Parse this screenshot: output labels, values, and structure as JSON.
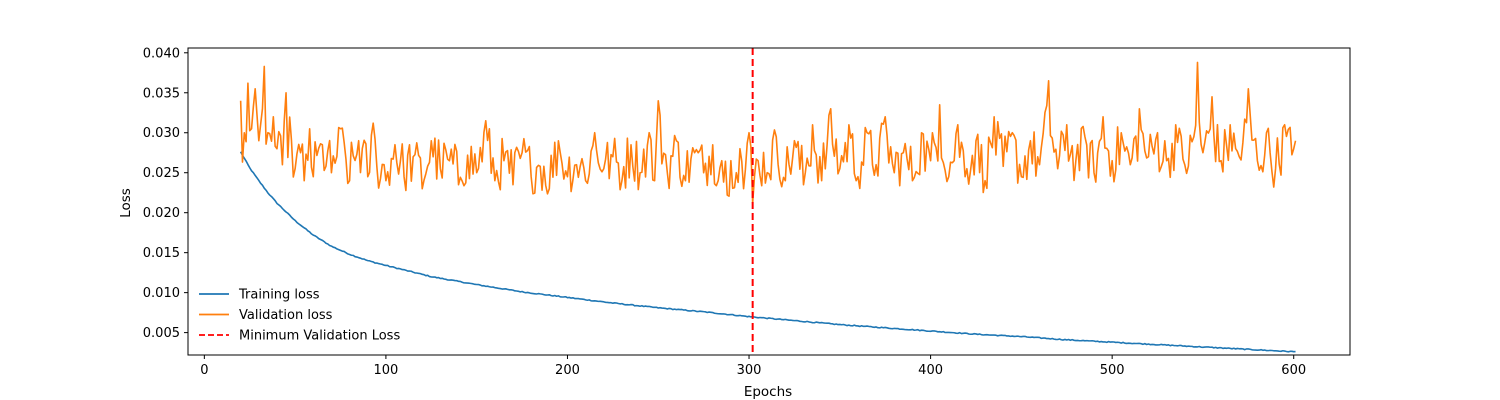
{
  "chart_data": {
    "type": "line",
    "title": "",
    "xlabel": "Epochs",
    "ylabel": "Loss",
    "xlim": [
      -9,
      631
    ],
    "ylim": [
      0.0022,
      0.0406
    ],
    "xticks": [
      0,
      100,
      200,
      300,
      400,
      500,
      600
    ],
    "xtick_labels": [
      "0",
      "100",
      "200",
      "300",
      "400",
      "500",
      "600"
    ],
    "yticks": [
      0.005,
      0.01,
      0.015,
      0.02,
      0.025,
      0.03,
      0.035,
      0.04
    ],
    "ytick_labels": [
      "0.005",
      "0.010",
      "0.015",
      "0.020",
      "0.025",
      "0.030",
      "0.035",
      "0.040"
    ],
    "grid": false,
    "legend_position": "lower-left",
    "x_range": [
      20,
      601
    ],
    "series": [
      {
        "name": "Training loss",
        "color": "#1f77b4",
        "style": "solid",
        "x": [
          20,
          25,
          30,
          35,
          40,
          50,
          60,
          70,
          80,
          90,
          100,
          125,
          150,
          175,
          200,
          225,
          250,
          275,
          300,
          325,
          350,
          375,
          400,
          425,
          450,
          475,
          500,
          525,
          550,
          575,
          601
        ],
        "y": [
          0.0276,
          0.0256,
          0.024,
          0.0225,
          0.0212,
          0.019,
          0.0172,
          0.0158,
          0.0148,
          0.014,
          0.0134,
          0.012,
          0.011,
          0.0101,
          0.0094,
          0.0087,
          0.0081,
          0.0076,
          0.007,
          0.0065,
          0.006,
          0.0056,
          0.0052,
          0.0048,
          0.0045,
          0.0041,
          0.0038,
          0.0035,
          0.0032,
          0.0029,
          0.0026
        ]
      },
      {
        "name": "Validation loss",
        "color": "#ff7f0e",
        "style": "solid",
        "x": [
          20,
          22,
          24,
          26,
          28,
          30,
          32,
          33,
          35,
          38,
          40,
          43,
          45,
          48,
          50,
          53,
          55,
          58,
          60,
          65,
          70,
          75,
          80,
          85,
          90,
          93,
          95,
          100,
          105,
          110,
          115,
          120,
          125,
          130,
          135,
          140,
          145,
          150,
          155,
          160,
          165,
          170,
          175,
          180,
          185,
          190,
          195,
          200,
          205,
          210,
          215,
          220,
          225,
          230,
          235,
          240,
          245,
          248,
          250,
          255,
          260,
          265,
          270,
          275,
          280,
          283,
          285,
          288,
          290,
          293,
          295,
          297,
          300,
          302,
          305,
          310,
          315,
          320,
          325,
          330,
          335,
          340,
          345,
          350,
          355,
          360,
          365,
          370,
          375,
          380,
          385,
          390,
          395,
          400,
          405,
          410,
          415,
          420,
          425,
          430,
          435,
          440,
          445,
          450,
          455,
          460,
          465,
          470,
          475,
          480,
          485,
          490,
          495,
          500,
          505,
          510,
          515,
          520,
          525,
          530,
          535,
          540,
          545,
          547,
          550,
          555,
          560,
          565,
          570,
          575,
          580,
          585,
          590,
          595,
          600,
          601
        ],
        "y": [
          0.034,
          0.03,
          0.0362,
          0.0305,
          0.0355,
          0.029,
          0.033,
          0.0383,
          0.03,
          0.032,
          0.028,
          0.026,
          0.035,
          0.029,
          0.0255,
          0.0275,
          0.024,
          0.0305,
          0.0245,
          0.0285,
          0.025,
          0.0305,
          0.024,
          0.029,
          0.0245,
          0.0312,
          0.0258,
          0.024,
          0.0285,
          0.0245,
          0.027,
          0.023,
          0.029,
          0.0255,
          0.0265,
          0.0235,
          0.0272,
          0.025,
          0.0315,
          0.024,
          0.0265,
          0.0235,
          0.0275,
          0.0245,
          0.0258,
          0.023,
          0.029,
          0.0245,
          0.026,
          0.024,
          0.03,
          0.0255,
          0.027,
          0.024,
          0.0285,
          0.025,
          0.03,
          0.024,
          0.034,
          0.025,
          0.029,
          0.024,
          0.0275,
          0.025,
          0.0285,
          0.024,
          0.0265,
          0.0222,
          0.0265,
          0.025,
          0.028,
          0.023,
          0.03,
          0.0212,
          0.0265,
          0.025,
          0.0295,
          0.024,
          0.029,
          0.0235,
          0.031,
          0.024,
          0.033,
          0.0255,
          0.031,
          0.0245,
          0.03,
          0.026,
          0.032,
          0.025,
          0.0275,
          0.024,
          0.03,
          0.0265,
          0.0335,
          0.0245,
          0.031,
          0.0255,
          0.029,
          0.024,
          0.032,
          0.0258,
          0.03,
          0.0245,
          0.029,
          0.026,
          0.0365,
          0.0255,
          0.031,
          0.0265,
          0.0295,
          0.025,
          0.032,
          0.0265,
          0.03,
          0.026,
          0.033,
          0.027,
          0.03,
          0.0265,
          0.031,
          0.026,
          0.0295,
          0.0388,
          0.0275,
          0.0345,
          0.0265,
          0.031,
          0.027,
          0.0355,
          0.0265,
          0.03,
          0.0255,
          0.031,
          0.028,
          0.029
        ]
      },
      {
        "name": "Minimum Validation Loss",
        "color": "#ff0000",
        "style": "dashed",
        "vline_x": 302
      }
    ]
  }
}
